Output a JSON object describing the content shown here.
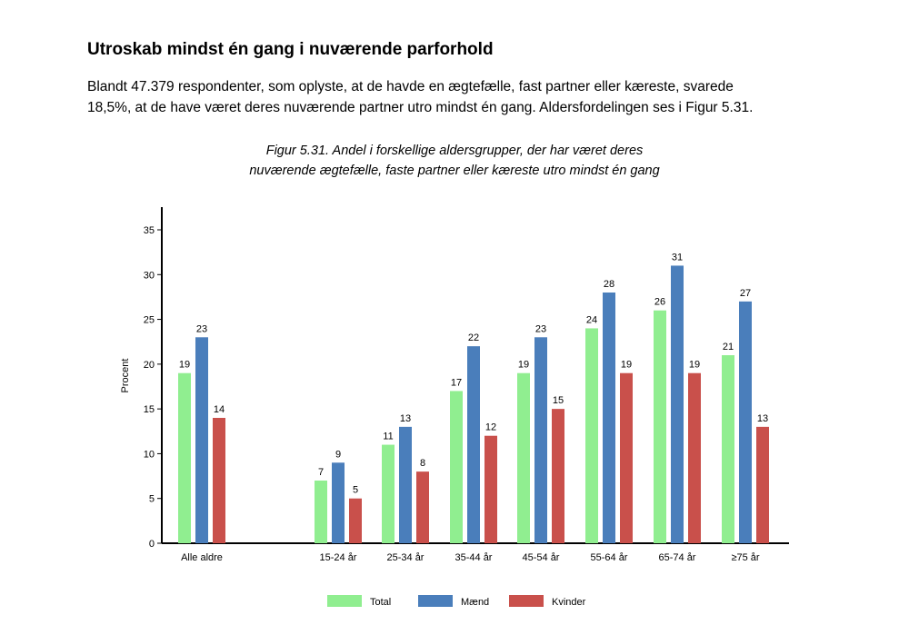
{
  "heading": "Utroskab mindst én gang i nuværende parforhold",
  "paragraph_line1": "Blandt 47.379 respondenter, som oplyste, at de havde en ægtefælle, fast partner eller kæreste, svarede",
  "paragraph_line2": "18,5%, at de have været deres nuværende partner utro mindst én gang. Aldersfordelingen ses i Figur 5.31.",
  "chart_data": {
    "type": "bar",
    "title_line1": "Figur 5.31. Andel i forskellige aldersgrupper, der har været deres",
    "title_line2": "nuværende ægtefælle, faste partner eller kæreste utro mindst én gang",
    "ylabel": "Procent",
    "xlabel": "",
    "ylim": [
      0,
      35
    ],
    "yticks": [
      0,
      5,
      10,
      15,
      20,
      25,
      30,
      35
    ],
    "categories": [
      "Alle aldre",
      "15-24 år",
      "25-34 år",
      "35-44 år",
      "45-54 år",
      "55-64 år",
      "65-74 år",
      "≥75 år"
    ],
    "series": [
      {
        "name": "Total",
        "color": "#90ee90",
        "values": [
          19,
          7,
          11,
          17,
          19,
          24,
          26,
          21
        ]
      },
      {
        "name": "Mænd",
        "color": "#4a7ebb",
        "values": [
          23,
          9,
          13,
          22,
          23,
          28,
          31,
          27
        ]
      },
      {
        "name": "Kvinder",
        "color": "#c9504b",
        "values": [
          14,
          5,
          8,
          12,
          15,
          19,
          19,
          13
        ]
      }
    ],
    "grid": false,
    "legend_position": "bottom"
  }
}
